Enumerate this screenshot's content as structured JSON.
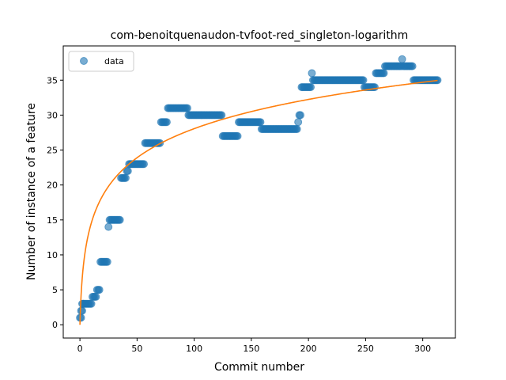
{
  "chart_data": {
    "type": "scatter",
    "title": "com-benoitquenaudon-tvfoot-red_singleton-logarithm",
    "xlabel": "Commit number",
    "ylabel": "Number of instance of a feature",
    "xlim": [
      -14.6,
      328.6
    ],
    "ylim": [
      -1.9,
      39.9
    ],
    "xticks": [
      0,
      50,
      100,
      150,
      200,
      250,
      300
    ],
    "yticks": [
      0,
      5,
      10,
      15,
      20,
      25,
      30,
      35
    ],
    "grid": false,
    "legend_position": "upper-left",
    "series": [
      {
        "name": "data",
        "kind": "points",
        "color": "#1f77b4",
        "segments": [
          [
            0,
            1,
            1
          ],
          [
            1,
            2,
            2
          ],
          [
            2,
            3,
            3
          ],
          [
            3,
            10,
            3
          ],
          [
            11,
            14,
            4
          ],
          [
            15,
            17,
            5
          ],
          [
            18,
            24,
            9
          ],
          [
            25,
            25,
            14
          ],
          [
            26,
            35,
            15
          ],
          [
            36,
            40,
            21
          ],
          [
            41,
            42,
            22
          ],
          [
            43,
            50,
            23
          ],
          [
            51,
            52,
            23
          ],
          [
            53,
            56,
            23
          ],
          [
            57,
            70,
            26
          ],
          [
            71,
            76,
            29
          ],
          [
            77,
            94,
            31
          ],
          [
            95,
            124,
            30
          ],
          [
            125,
            138,
            27
          ],
          [
            139,
            158,
            29
          ],
          [
            159,
            190,
            28
          ],
          [
            191,
            191,
            29
          ],
          [
            192,
            193,
            30
          ],
          [
            194,
            202,
            34
          ],
          [
            203,
            203,
            36
          ],
          [
            204,
            248,
            35
          ],
          [
            249,
            258,
            34
          ],
          [
            259,
            266,
            36
          ],
          [
            267,
            281,
            37
          ],
          [
            282,
            282,
            38
          ],
          [
            283,
            291,
            37
          ],
          [
            292,
            313,
            35
          ]
        ]
      },
      {
        "name": "",
        "kind": "fit",
        "color": "#ff7f0e",
        "model": "y = a * ln(1 + x)",
        "a": 6.08,
        "x_range": [
          0,
          313
        ]
      }
    ]
  }
}
